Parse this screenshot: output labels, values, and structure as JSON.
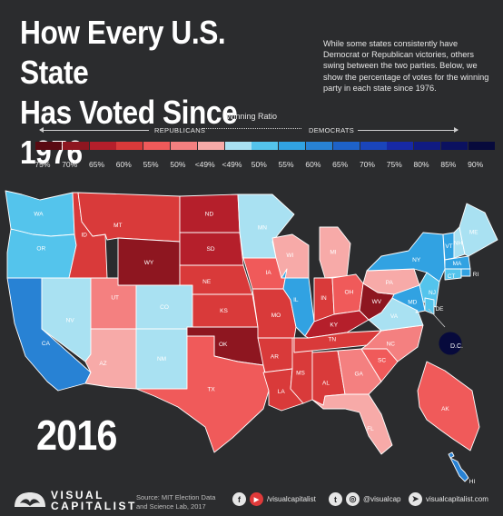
{
  "header": {
    "title_line1": "How Every U.S. State",
    "title_line2": "Has Voted Since 1976",
    "intro": "While some states consistently have Democrat or Republican victories, others swing between the two parties. Below, we show the percentage of votes for the winning party in each state since 1976."
  },
  "legend": {
    "title": "Winning Ratio",
    "republicans_label": "REPUBLICANS",
    "democrats_label": "DEMOCRATS",
    "ticks": [
      "75%",
      "70%",
      "65%",
      "60%",
      "55%",
      "50%",
      "<49%",
      "<49%",
      "50%",
      "55%",
      "60%",
      "65%",
      "70%",
      "75%",
      "80%",
      "85%",
      "90%"
    ],
    "colors": [
      "#5a0a12",
      "#8e1620",
      "#b51f2b",
      "#d93a3a",
      "#f05a5a",
      "#f48080",
      "#f7aaa8",
      "#a9e1f2",
      "#54c4ec",
      "#31a2e2",
      "#2882d4",
      "#1e62c8",
      "#1a45bb",
      "#1729a5",
      "#101b82",
      "#0b1160",
      "#070a3c"
    ]
  },
  "map": {
    "year": "2016",
    "dc_label": "D.C.",
    "states": [
      {
        "abbr": "WA",
        "color": "#54c4ec"
      },
      {
        "abbr": "OR",
        "color": "#54c4ec"
      },
      {
        "abbr": "CA",
        "color": "#2882d4"
      },
      {
        "abbr": "NV",
        "color": "#a9e1f2"
      },
      {
        "abbr": "ID",
        "color": "#d93a3a"
      },
      {
        "abbr": "MT",
        "color": "#d93a3a"
      },
      {
        "abbr": "WY",
        "color": "#8e1620"
      },
      {
        "abbr": "UT",
        "color": "#f48080"
      },
      {
        "abbr": "CO",
        "color": "#a9e1f2"
      },
      {
        "abbr": "AZ",
        "color": "#f7aaa8"
      },
      {
        "abbr": "NM",
        "color": "#a9e1f2"
      },
      {
        "abbr": "ND",
        "color": "#b51f2b"
      },
      {
        "abbr": "SD",
        "color": "#b51f2b"
      },
      {
        "abbr": "NE",
        "color": "#d93a3a"
      },
      {
        "abbr": "KS",
        "color": "#d93a3a"
      },
      {
        "abbr": "OK",
        "color": "#8e1620"
      },
      {
        "abbr": "TX",
        "color": "#f05a5a"
      },
      {
        "abbr": "MN",
        "color": "#a9e1f2"
      },
      {
        "abbr": "IA",
        "color": "#f05a5a"
      },
      {
        "abbr": "MO",
        "color": "#d93a3a"
      },
      {
        "abbr": "AR",
        "color": "#d93a3a"
      },
      {
        "abbr": "LA",
        "color": "#d93a3a"
      },
      {
        "abbr": "WI",
        "color": "#f7aaa8"
      },
      {
        "abbr": "IL",
        "color": "#31a2e2"
      },
      {
        "abbr": "MS",
        "color": "#d93a3a"
      },
      {
        "abbr": "MI",
        "color": "#f7aaa8"
      },
      {
        "abbr": "IN",
        "color": "#d93a3a"
      },
      {
        "abbr": "OH",
        "color": "#f05a5a"
      },
      {
        "abbr": "KY",
        "color": "#b51f2b"
      },
      {
        "abbr": "TN",
        "color": "#d93a3a"
      },
      {
        "abbr": "AL",
        "color": "#d93a3a"
      },
      {
        "abbr": "GA",
        "color": "#f48080"
      },
      {
        "abbr": "FL",
        "color": "#f7aaa8"
      },
      {
        "abbr": "SC",
        "color": "#f05a5a"
      },
      {
        "abbr": "NC",
        "color": "#f48080"
      },
      {
        "abbr": "VA",
        "color": "#a9e1f2"
      },
      {
        "abbr": "WV",
        "color": "#8e1620"
      },
      {
        "abbr": "PA",
        "color": "#f7aaa8"
      },
      {
        "abbr": "NY",
        "color": "#31a2e2"
      },
      {
        "abbr": "VT",
        "color": "#31a2e2"
      },
      {
        "abbr": "NH",
        "color": "#a9e1f2"
      },
      {
        "abbr": "ME",
        "color": "#a9e1f2"
      },
      {
        "abbr": "MA",
        "color": "#31a2e2"
      },
      {
        "abbr": "RI",
        "color": "#31a2e2"
      },
      {
        "abbr": "CT",
        "color": "#54c4ec"
      },
      {
        "abbr": "NJ",
        "color": "#54c4ec"
      },
      {
        "abbr": "DE",
        "color": "#54c4ec"
      },
      {
        "abbr": "MD",
        "color": "#31a2e2"
      },
      {
        "abbr": "DC",
        "color": "#070a3c"
      },
      {
        "abbr": "AK",
        "color": "#f05a5a"
      },
      {
        "abbr": "HI",
        "color": "#2882d4"
      }
    ]
  },
  "footer": {
    "logo_line1": "VISUAL",
    "logo_line2": "CAPITALIST",
    "source_line1": "Source: MIT Election Data",
    "source_line2": "and Science Lab, 2017",
    "facebook_icon": "f",
    "youtube_icon": "▶",
    "facebook_handle": "/visualcapitalist",
    "twitter_icon": "t",
    "instagram_icon": "◎",
    "twitter_handle": "@visualcap",
    "cursor_icon": "➤",
    "website": "visualcapitalist.com"
  }
}
